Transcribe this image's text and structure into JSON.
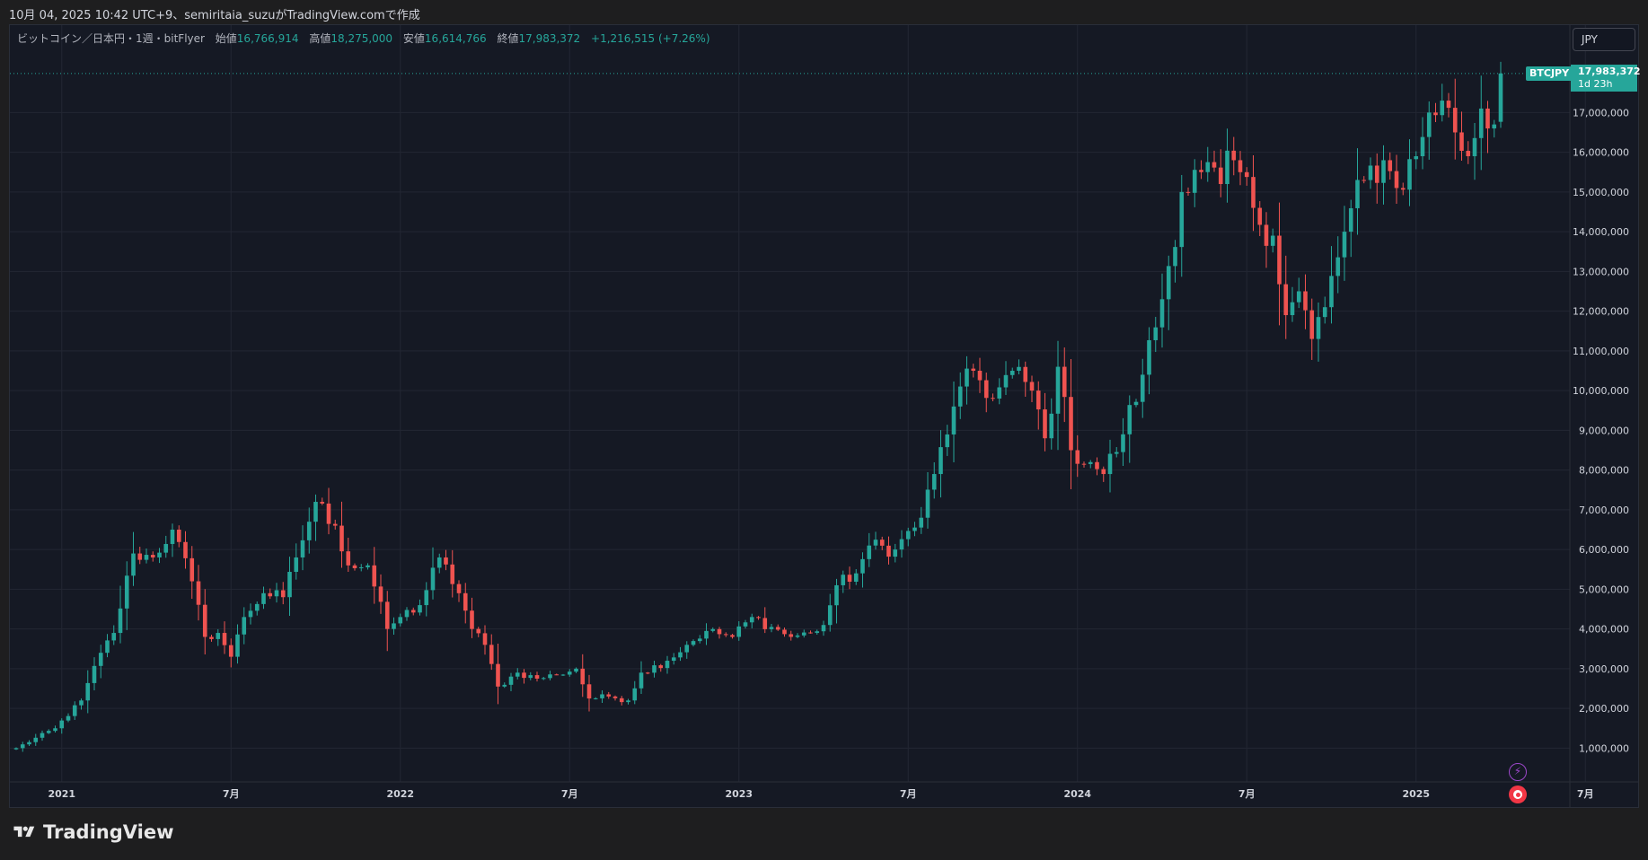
{
  "header": {
    "attribution": "10月 04, 2025 10:42 UTC+9、semiritaia_suzuがTradingView.comで作成"
  },
  "legend": {
    "symbol_desc": "ビットコイン／日本円・1週・bitFlyer",
    "open_label": "始値",
    "open": "16,766,914",
    "high_label": "高値",
    "high": "18,275,000",
    "low_label": "安値",
    "low": "16,614,766",
    "close_label": "終値",
    "close": "17,983,372",
    "change": "+1,216,515 (+7.26%)"
  },
  "toolbar": {
    "currency": "JPY"
  },
  "price_tags": {
    "symbol": "BTCJPY",
    "last": "17,983,372",
    "countdown": "1d 23h"
  },
  "footer": {
    "brand": "TradingView",
    "logo_icon": "tradingview-logo-icon"
  },
  "icons": {
    "bolt": "lightning-icon",
    "record": "record-icon"
  },
  "colors": {
    "up": "#26a69a",
    "down": "#ef5350",
    "background": "#151924",
    "grid": "#232733",
    "text": "#d1d4dc"
  },
  "chart_data": {
    "type": "candlestick",
    "timeframe": "1週",
    "exchange": "bitFlyer",
    "ylim": [
      150000,
      19200000
    ],
    "y_ticks": [
      1000000,
      2000000,
      3000000,
      4000000,
      5000000,
      6000000,
      7000000,
      8000000,
      9000000,
      10000000,
      11000000,
      12000000,
      13000000,
      14000000,
      15000000,
      16000000,
      17000000
    ],
    "x_ticks": [
      {
        "label": "2021",
        "week": 7
      },
      {
        "label": "7月",
        "week": 33
      },
      {
        "label": "2022",
        "week": 59
      },
      {
        "label": "7月",
        "week": 85
      },
      {
        "label": "2023",
        "week": 111
      },
      {
        "label": "7月",
        "week": 137
      },
      {
        "label": "2024",
        "week": 163
      },
      {
        "label": "7月",
        "week": 189
      },
      {
        "label": "2025",
        "week": 215
      },
      {
        "label": "7月",
        "week": 241
      }
    ],
    "anchors": [
      [
        0,
        1000000
      ],
      [
        6,
        1500000
      ],
      [
        10,
        2200000
      ],
      [
        13,
        3400000
      ],
      [
        15,
        3900000
      ],
      [
        18,
        5900000
      ],
      [
        21,
        5800000
      ],
      [
        24,
        6500000
      ],
      [
        27,
        5200000
      ],
      [
        29,
        3800000
      ],
      [
        31,
        3900000
      ],
      [
        33,
        3300000
      ],
      [
        35,
        4300000
      ],
      [
        38,
        4900000
      ],
      [
        41,
        4800000
      ],
      [
        43,
        5800000
      ],
      [
        46,
        7200000
      ],
      [
        49,
        6600000
      ],
      [
        51,
        5600000
      ],
      [
        54,
        5600000
      ],
      [
        57,
        4000000
      ],
      [
        59,
        4300000
      ],
      [
        62,
        4600000
      ],
      [
        65,
        5800000
      ],
      [
        68,
        4900000
      ],
      [
        70,
        4000000
      ],
      [
        72,
        3600000
      ],
      [
        74,
        2550000
      ],
      [
        77,
        2900000
      ],
      [
        80,
        2750000
      ],
      [
        83,
        2850000
      ],
      [
        86,
        3000000
      ],
      [
        88,
        2250000
      ],
      [
        91,
        2300000
      ],
      [
        94,
        2200000
      ],
      [
        96,
        2900000
      ],
      [
        100,
        3200000
      ],
      [
        103,
        3600000
      ],
      [
        106,
        3950000
      ],
      [
        110,
        3800000
      ],
      [
        113,
        4300000
      ],
      [
        116,
        4050000
      ],
      [
        119,
        3800000
      ],
      [
        122,
        3900000
      ],
      [
        124,
        4100000
      ],
      [
        126,
        5100000
      ],
      [
        129,
        5400000
      ],
      [
        131,
        6100000
      ],
      [
        135,
        6000000
      ],
      [
        139,
        6800000
      ],
      [
        141,
        7900000
      ],
      [
        144,
        9600000
      ],
      [
        147,
        10500000
      ],
      [
        150,
        9800000
      ],
      [
        153,
        10500000
      ],
      [
        156,
        10000000
      ],
      [
        158,
        8800000
      ],
      [
        160,
        10600000
      ],
      [
        162,
        8500000
      ],
      [
        165,
        8200000
      ],
      [
        167,
        7900000
      ],
      [
        170,
        8900000
      ],
      [
        173,
        10400000
      ],
      [
        176,
        12300000
      ],
      [
        179,
        15000000
      ],
      [
        182,
        15500000
      ],
      [
        185,
        15200000
      ],
      [
        187,
        15800000
      ],
      [
        190,
        14600000
      ],
      [
        193,
        13900000
      ],
      [
        195,
        11900000
      ],
      [
        197,
        12500000
      ],
      [
        199,
        11300000
      ],
      [
        201,
        12100000
      ],
      [
        204,
        14000000
      ],
      [
        207,
        15300000
      ],
      [
        210,
        15800000
      ],
      [
        212,
        15100000
      ],
      [
        215,
        15900000
      ],
      [
        217,
        17000000
      ],
      [
        219,
        17300000
      ],
      [
        221,
        16500000
      ],
      [
        223,
        15900000
      ],
      [
        225,
        17100000
      ],
      [
        227,
        16700000
      ],
      [
        228,
        17983372
      ]
    ],
    "last_candle": {
      "open": 16766914,
      "high": 18275000,
      "low": 16614766,
      "close": 17983372
    },
    "last_price": 17983372
  }
}
